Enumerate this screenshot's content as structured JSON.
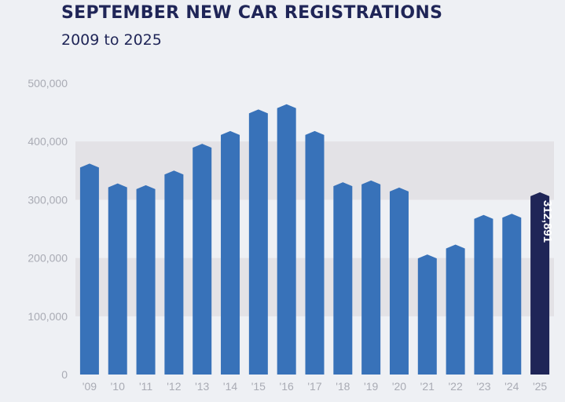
{
  "chart_data": {
    "type": "bar",
    "title": "SEPTEMBER NEW CAR REGISTRATIONS",
    "subtitle": "2009 to 2025",
    "categories": [
      "'09",
      "'10",
      "'11",
      "'12",
      "'13",
      "'14",
      "'15",
      "'16",
      "'17",
      "'18",
      "'19",
      "'20",
      "'21",
      "'22",
      "'23",
      "'24",
      "'25"
    ],
    "values": [
      362000,
      328000,
      325000,
      350000,
      396000,
      418000,
      455000,
      464000,
      418000,
      330000,
      333000,
      321000,
      206000,
      223000,
      274000,
      276000,
      312891
    ],
    "highlight": {
      "index": 16,
      "label": "312,891",
      "color": "#1f2557"
    },
    "bar_color": "#3872b9",
    "yticks": [
      0,
      100000,
      200000,
      300000,
      400000,
      500000
    ],
    "ytick_labels": [
      "0",
      "100,000",
      "200,000",
      "300,000",
      "400,000",
      "500,000"
    ],
    "ylim": [
      0,
      500000
    ],
    "shaded_bands": [
      [
        100000,
        200000
      ],
      [
        300000,
        400000
      ]
    ],
    "band_color": "#e3e2e6",
    "grid": false,
    "xlabel": "",
    "ylabel": ""
  }
}
